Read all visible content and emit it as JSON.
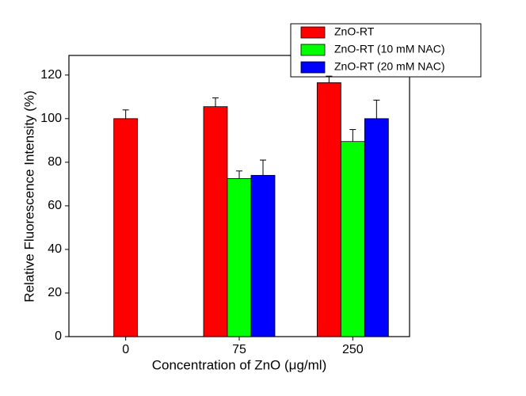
{
  "chart_data": {
    "type": "bar",
    "xlabel": "Concentration of ZnO (μg/ml)",
    "ylabel": "Relative  Fluorescence Intensity (%)",
    "categories": [
      "0",
      "75",
      "250"
    ],
    "series": [
      {
        "name": "ZnO-RT",
        "color": "#ff0000",
        "values": [
          100,
          105.5,
          116.5
        ],
        "errors": [
          4,
          4,
          3
        ]
      },
      {
        "name": "ZnO-RT (10 mM NAC)",
        "color": "#00ff00",
        "values": [
          null,
          72.5,
          89.5
        ],
        "errors": [
          null,
          3.5,
          5.5
        ]
      },
      {
        "name": "ZnO-RT (20 mM NAC)",
        "color": "#0000ff",
        "values": [
          null,
          74,
          100
        ],
        "errors": [
          null,
          7,
          8.5
        ]
      }
    ],
    "ylim": [
      0,
      129
    ],
    "yticks": [
      0,
      20,
      40,
      60,
      80,
      100,
      120
    ]
  }
}
